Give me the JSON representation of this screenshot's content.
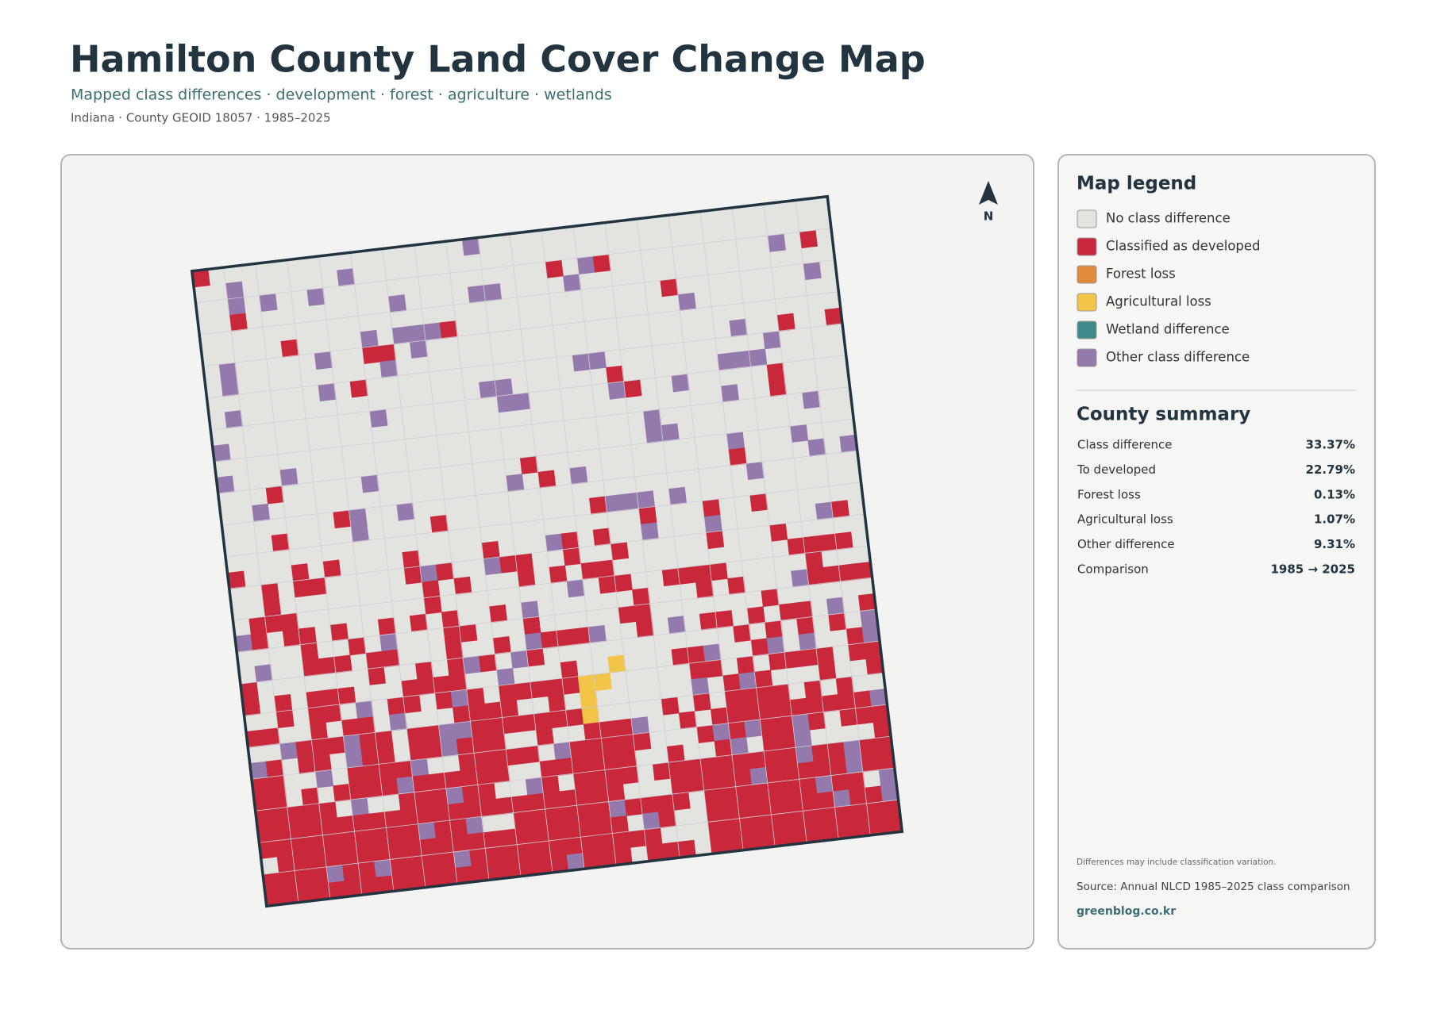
{
  "header": {
    "title": "Hamilton County Land Cover Change Map",
    "subtitle": "Mapped class differences · development · forest · agriculture · wetlands",
    "meta": "Indiana · County GEOID 18057 · 1985–2025"
  },
  "map": {
    "north": "N"
  },
  "legend": {
    "title": "Map legend",
    "items": [
      {
        "label": "No class difference",
        "color": "#e3e3df"
      },
      {
        "label": "Classified as developed",
        "color": "#c8283a"
      },
      {
        "label": "Forest loss",
        "color": "#e08a3a"
      },
      {
        "label": "Agricultural loss",
        "color": "#f2c447"
      },
      {
        "label": "Wetland difference",
        "color": "#3f8a8c"
      },
      {
        "label": "Other class difference",
        "color": "#9479ac"
      }
    ]
  },
  "summary": {
    "title": "County summary",
    "rows": [
      {
        "label": "Class difference",
        "value": "33.37%"
      },
      {
        "label": "To developed",
        "value": "22.79%"
      },
      {
        "label": "Forest loss",
        "value": "0.13%"
      },
      {
        "label": "Agricultural loss",
        "value": "1.07%"
      },
      {
        "label": "Other difference",
        "value": "9.31%"
      },
      {
        "label": "Comparison",
        "value": "1985 → 2025"
      }
    ]
  },
  "footer": {
    "note": "Differences may include classification variation.",
    "source": "Source: Annual NLCD 1985–2025 class comparison",
    "credit": "greenblog.co.kr"
  }
}
